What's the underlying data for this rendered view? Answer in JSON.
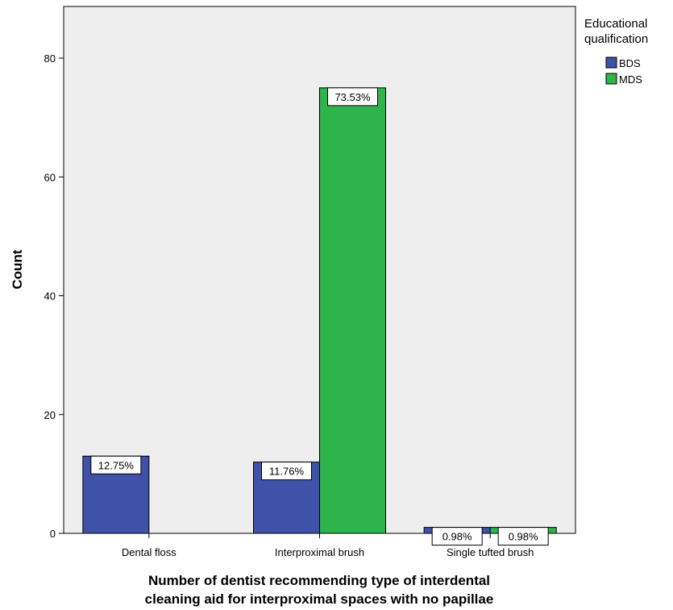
{
  "chart_data": {
    "type": "bar",
    "categories": [
      "Dental floss",
      "Interproximal brush",
      "Single tufted brush"
    ],
    "series": [
      {
        "name": "BDS",
        "color": "#3f51a9",
        "values": [
          13,
          12,
          1
        ],
        "labels": [
          "12.75%",
          "11.76%",
          "0.98%"
        ]
      },
      {
        "name": "MDS",
        "color": "#2db44a",
        "values": [
          0,
          75,
          1
        ],
        "labels": [
          "",
          "73.53%",
          "0.98%"
        ]
      }
    ],
    "ylabel": "Count",
    "xlabel_lines": [
      "Number of dentist recommending type of interdental",
      "cleaning aid for interproximal spaces with no papillae"
    ],
    "yticks": [
      0,
      20,
      40,
      60,
      80
    ],
    "ylim": [
      0,
      88.7
    ],
    "legend": {
      "title_lines": [
        "Educational",
        "qualification"
      ],
      "placement": "top-right"
    },
    "plot_background": "#eeeeee",
    "grid": false
  }
}
